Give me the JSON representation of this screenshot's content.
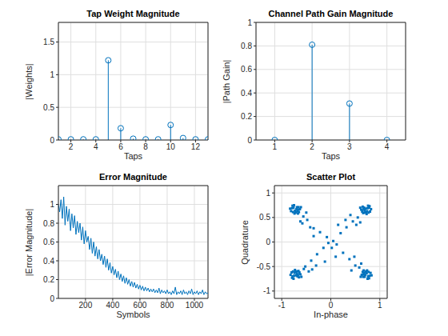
{
  "chart_data": [
    {
      "type": "stem",
      "title": "Tap Weight Magnitude",
      "x_label": "Taps",
      "y_label": "|Weights|",
      "x": [
        1,
        2,
        3,
        4,
        5,
        6,
        7,
        8,
        9,
        10,
        11,
        12,
        13
      ],
      "values": [
        0.01,
        0.01,
        0.01,
        0.01,
        1.22,
        0.18,
        0.02,
        0.01,
        0.01,
        0.23,
        0.03,
        0.01,
        0.01
      ],
      "color": "#0072bd",
      "marker": "circle",
      "xlim": [
        1,
        13
      ],
      "xticks": [
        2,
        4,
        6,
        8,
        10,
        12
      ],
      "ylim": [
        0,
        1.8
      ],
      "yticks": [
        0,
        0.5,
        1,
        1.5
      ],
      "grid": true
    },
    {
      "type": "stem",
      "title": "Channel Path Gain Magnitude",
      "x_label": "Taps",
      "y_label": "|Path Gain|",
      "x": [
        1,
        2,
        3,
        4
      ],
      "values": [
        0,
        0.81,
        0.31,
        0
      ],
      "color": "#0072bd",
      "marker": "circle",
      "xlim": [
        0.5,
        4.5
      ],
      "xticks": [
        1,
        2,
        3,
        4
      ],
      "ylim": [
        0,
        1
      ],
      "yticks": [
        0,
        0.2,
        0.4,
        0.6,
        0.8,
        1
      ],
      "grid": true
    },
    {
      "type": "line",
      "title": "Error Magnitude",
      "x_label": "Symbols",
      "y_label": "|Error Magnitude|",
      "x": [
        1,
        10,
        20,
        30,
        40,
        50,
        60,
        70,
        80,
        90,
        100,
        110,
        120,
        130,
        140,
        150,
        160,
        170,
        180,
        190,
        200,
        210,
        220,
        230,
        240,
        250,
        260,
        270,
        280,
        290,
        300,
        310,
        320,
        330,
        340,
        350,
        360,
        370,
        380,
        390,
        400,
        410,
        420,
        430,
        440,
        450,
        460,
        470,
        480,
        490,
        500,
        510,
        520,
        530,
        540,
        550,
        560,
        570,
        580,
        590,
        600,
        610,
        620,
        630,
        640,
        650,
        660,
        670,
        680,
        690,
        700,
        710,
        720,
        730,
        740,
        750,
        760,
        770,
        780,
        790,
        800,
        810,
        820,
        830,
        840,
        850,
        860,
        870,
        880,
        890,
        900,
        910,
        920,
        930,
        940,
        950,
        960,
        970,
        980,
        990,
        1000,
        1010,
        1020,
        1030,
        1040,
        1050,
        1060,
        1070,
        1080,
        1090,
        1100
      ],
      "values": [
        1.0,
        0.92,
        1.05,
        0.85,
        1.08,
        0.78,
        0.98,
        0.82,
        0.95,
        0.72,
        0.9,
        0.75,
        0.88,
        0.68,
        0.82,
        0.7,
        0.8,
        0.62,
        0.76,
        0.58,
        0.72,
        0.6,
        0.66,
        0.52,
        0.64,
        0.48,
        0.6,
        0.45,
        0.55,
        0.42,
        0.52,
        0.4,
        0.47,
        0.36,
        0.45,
        0.33,
        0.42,
        0.3,
        0.38,
        0.27,
        0.34,
        0.25,
        0.31,
        0.22,
        0.29,
        0.2,
        0.26,
        0.18,
        0.24,
        0.16,
        0.22,
        0.15,
        0.2,
        0.13,
        0.18,
        0.12,
        0.17,
        0.11,
        0.15,
        0.1,
        0.14,
        0.09,
        0.13,
        0.08,
        0.12,
        0.08,
        0.11,
        0.07,
        0.1,
        0.07,
        0.1,
        0.06,
        0.09,
        0.06,
        0.11,
        0.05,
        0.09,
        0.06,
        0.08,
        0.05,
        0.09,
        0.05,
        0.07,
        0.04,
        0.08,
        0.05,
        0.12,
        0.04,
        0.07,
        0.05,
        0.08,
        0.04,
        0.09,
        0.05,
        0.07,
        0.04,
        0.08,
        0.05,
        0.1,
        0.04,
        0.07,
        0.05,
        0.08,
        0.04,
        0.07,
        0.05,
        0.09,
        0.04,
        0.07,
        0.05,
        0.06
      ],
      "color": "#0072bd",
      "line_style": "solid",
      "xlim": [
        1,
        1100
      ],
      "xticks": [
        200,
        400,
        600,
        800,
        1000
      ],
      "ylim": [
        0,
        1.2
      ],
      "yticks": [
        0,
        0.2,
        0.4,
        0.6,
        0.8,
        1
      ],
      "grid": true
    },
    {
      "type": "scatter",
      "title": "Scatter Plot",
      "x_label": "In-phase",
      "y_label": "Quadrature",
      "x": [
        0.65,
        0.7,
        0.78,
        0.74,
        0.62,
        0.8,
        0.68,
        0.76,
        0.71,
        0.66,
        0.82,
        0.73,
        0.6,
        0.77,
        0.69,
        0.75,
        0.64,
        0.79,
        0.72,
        0.67,
        -0.66,
        -0.71,
        -0.79,
        -0.73,
        -0.63,
        -0.81,
        -0.69,
        -0.75,
        -0.7,
        -0.67,
        -0.83,
        -0.74,
        -0.61,
        -0.77,
        -0.68,
        -0.76,
        -0.65,
        -0.78,
        -0.72,
        -0.66,
        -0.65,
        -0.7,
        -0.78,
        -0.74,
        -0.62,
        -0.8,
        -0.68,
        -0.76,
        -0.71,
        -0.66,
        -0.82,
        -0.73,
        -0.6,
        -0.77,
        -0.69,
        -0.75,
        -0.64,
        -0.79,
        -0.72,
        -0.67,
        0.66,
        0.71,
        0.79,
        0.73,
        0.63,
        0.81,
        0.69,
        0.75,
        0.7,
        0.67,
        0.83,
        0.74,
        0.61,
        0.77,
        0.68,
        0.76,
        0.65,
        0.78,
        0.72,
        0.66,
        0.05,
        -0.08,
        0.12,
        -0.15,
        0.2,
        -0.22,
        0.25,
        -0.28,
        0.32,
        -0.35,
        0.38,
        -0.4,
        0.45,
        -0.48,
        0.5,
        -0.52,
        0.55,
        -0.56,
        0.58,
        -0.55,
        0.3,
        -0.42,
        0.48,
        -0.3,
        0.15,
        -0.35,
        0.1,
        -0.12,
        0.6,
        -0.62,
        0.42,
        -0.45,
        0.02,
        -0.05,
        0.4,
        -0.58,
        0.62,
        -0.38,
        0.52,
        -0.5
      ],
      "values": [
        0.72,
        0.6,
        0.7,
        0.63,
        0.66,
        0.62,
        0.7,
        0.74,
        0.68,
        0.59,
        0.67,
        0.57,
        0.7,
        0.6,
        0.64,
        0.69,
        0.62,
        0.73,
        0.61,
        0.67,
        0.71,
        0.61,
        0.69,
        0.64,
        0.67,
        0.63,
        0.71,
        0.75,
        0.67,
        0.58,
        0.68,
        0.58,
        0.71,
        0.61,
        0.63,
        0.7,
        0.61,
        0.74,
        0.6,
        0.66,
        -0.72,
        -0.6,
        -0.7,
        -0.63,
        -0.66,
        -0.62,
        -0.7,
        -0.75,
        -0.68,
        -0.59,
        -0.67,
        -0.57,
        -0.71,
        -0.6,
        -0.64,
        -0.69,
        -0.62,
        -0.73,
        -0.61,
        -0.67,
        -0.71,
        -0.61,
        -0.69,
        -0.64,
        -0.67,
        -0.63,
        -0.71,
        -0.75,
        -0.67,
        -0.58,
        -0.68,
        -0.58,
        -0.71,
        -0.61,
        -0.63,
        -0.7,
        -0.61,
        -0.74,
        -0.6,
        -0.66,
        0.02,
        0.1,
        -0.05,
        -0.12,
        0.18,
        0.2,
        -0.22,
        -0.25,
        0.3,
        0.28,
        -0.35,
        -0.38,
        0.42,
        0.45,
        -0.48,
        -0.5,
        0.5,
        0.52,
        -0.52,
        -0.55,
        0.45,
        0.3,
        -0.3,
        -0.48,
        0.35,
        0.12,
        -0.3,
        -0.4,
        0.4,
        0.42,
        -0.58,
        -0.6,
        -0.12,
        -0.02,
        0.55,
        0.38,
        -0.44,
        -0.56,
        0.35,
        0.6
      ],
      "color": "#0072bd",
      "marker": "square",
      "xlim": [
        -1.15,
        1.15
      ],
      "xticks": [
        -1,
        0,
        1
      ],
      "ylim": [
        -1.15,
        1.15
      ],
      "yticks": [
        -1,
        -0.5,
        0,
        0.5,
        1
      ],
      "grid": true
    }
  ]
}
